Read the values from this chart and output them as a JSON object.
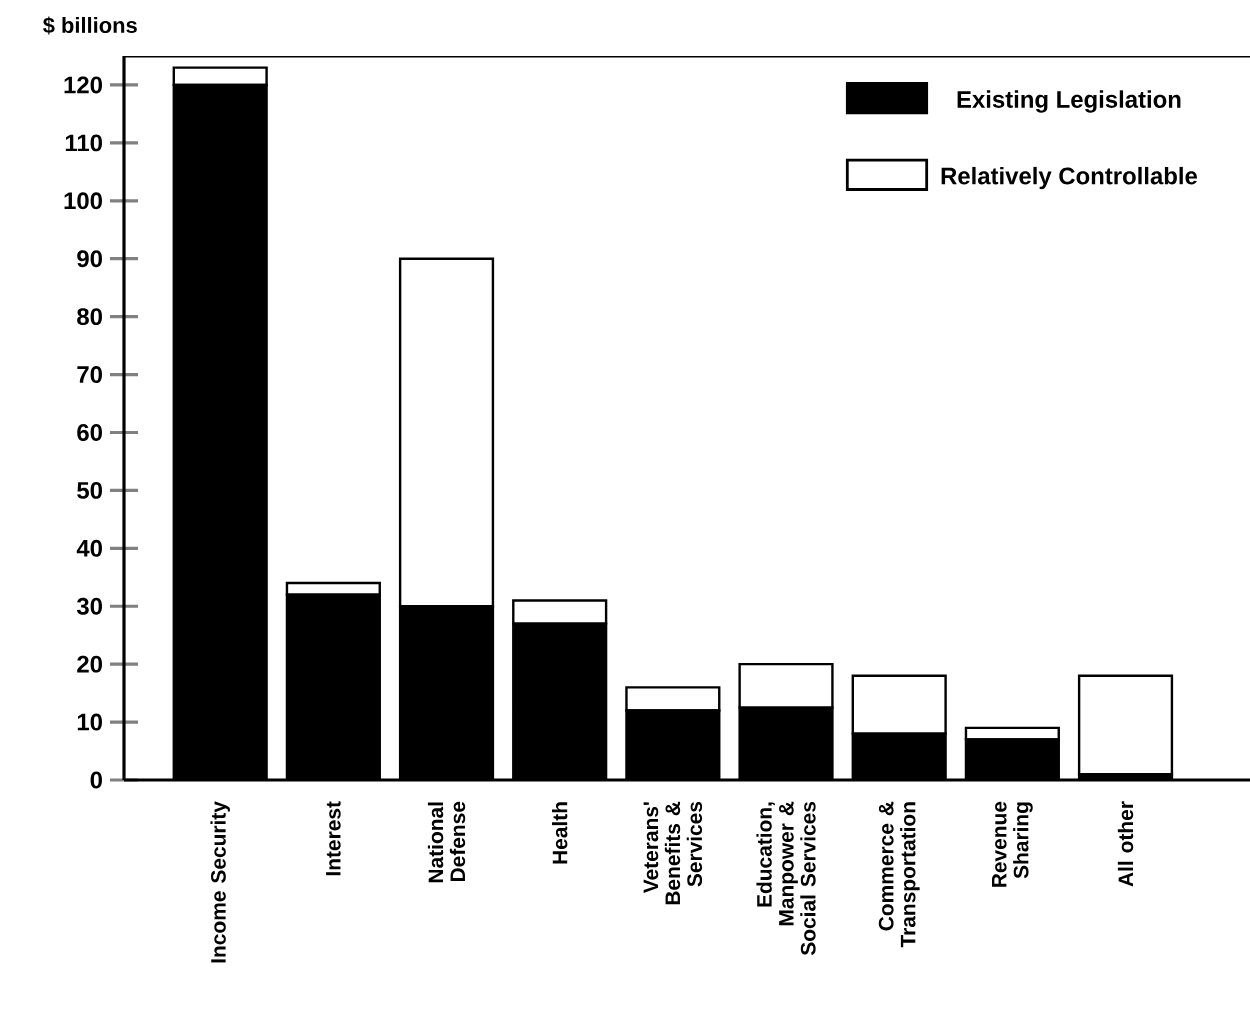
{
  "chart_data": {
    "type": "bar",
    "stacked": true,
    "ylabel": "$ billions",
    "categories": [
      "Income Security",
      "Interest",
      "National Defense",
      "Health",
      "Veterans' Benefits & Services",
      "Education, Manpower & Social Services",
      "Commerce & Transportation",
      "Revenue Sharing",
      "All other"
    ],
    "series": [
      {
        "name": "Existing Legislation",
        "color": "#000000",
        "values": [
          120,
          32,
          30,
          27,
          12,
          12.5,
          8,
          7,
          1
        ]
      },
      {
        "name": "Relatively Controllable",
        "color": "#ffffff",
        "values": [
          3,
          2,
          60,
          4,
          4,
          7.5,
          10,
          2,
          17
        ]
      }
    ],
    "ylim": [
      0,
      125
    ],
    "yticks": [
      0,
      10,
      20,
      30,
      40,
      50,
      60,
      70,
      80,
      90,
      100,
      110,
      120
    ],
    "grid": false,
    "legend": "top right"
  }
}
